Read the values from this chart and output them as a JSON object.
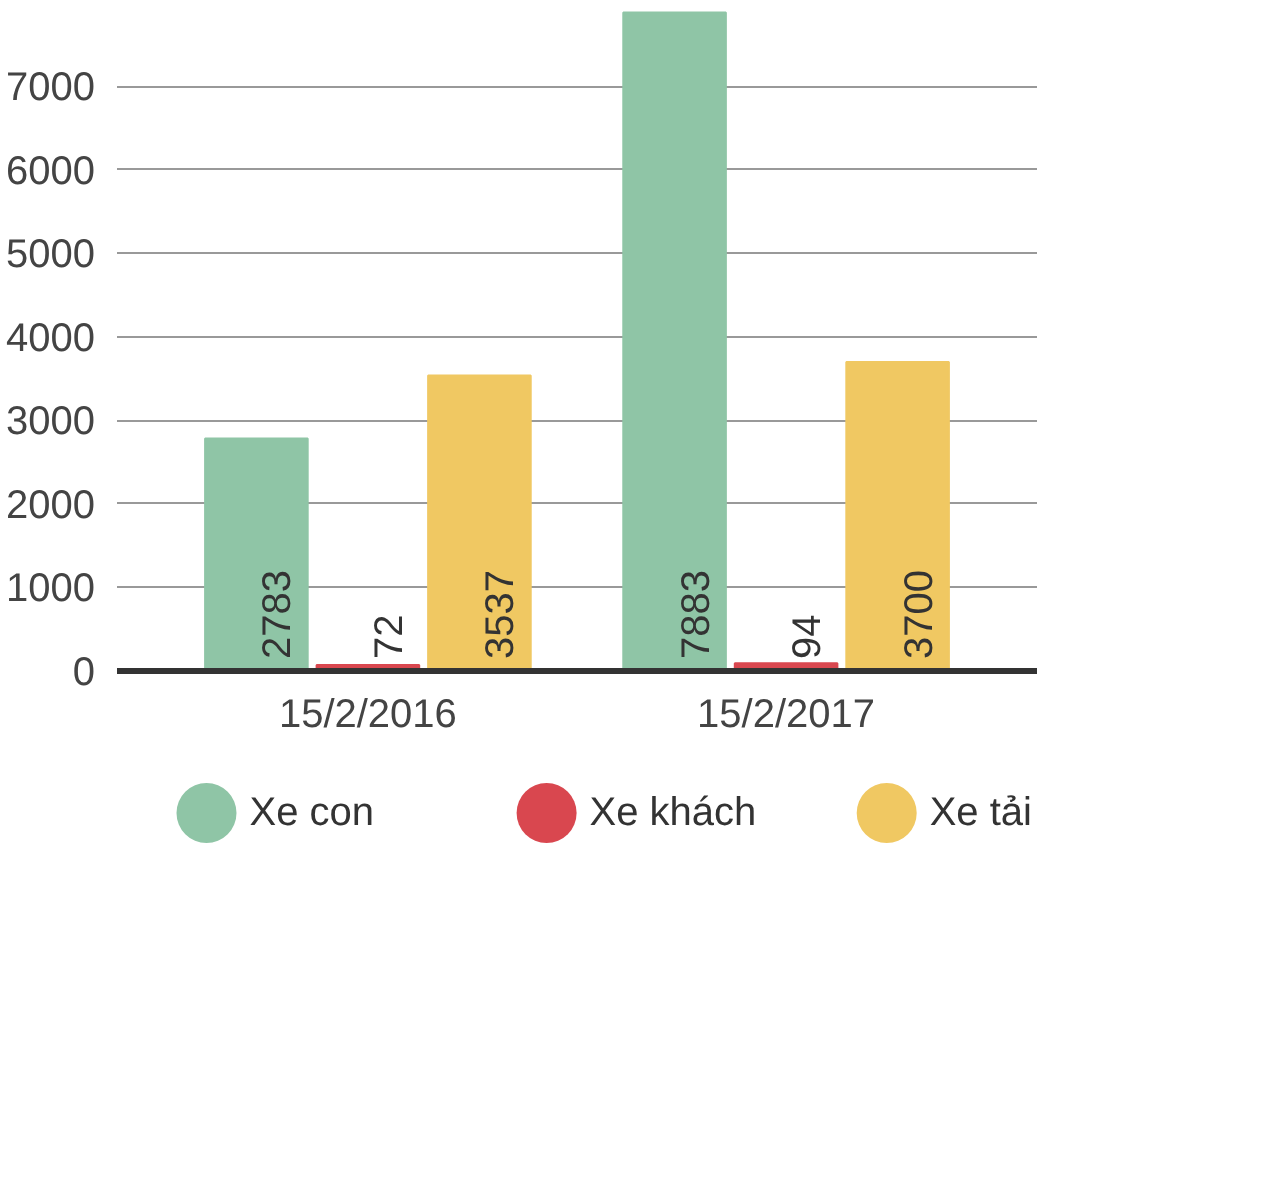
{
  "chart_data": {
    "type": "bar",
    "categories": [
      "15/2/2016",
      "15/2/2017"
    ],
    "series": [
      {
        "name": "Xe con",
        "color": "#8fc5a6",
        "values": [
          2783,
          7883
        ]
      },
      {
        "name": "Xe khách",
        "color": "#d9474f",
        "values": [
          72,
          94
        ]
      },
      {
        "name": "Xe tải",
        "color": "#f0c862",
        "values": [
          3537,
          3700
        ]
      }
    ],
    "ylim": [
      0,
      7900
    ],
    "yticks": [
      0,
      1000,
      2000,
      3000,
      4000,
      5000,
      6000,
      7000
    ],
    "grid": "y",
    "legend": "bottom",
    "data_labels": true
  }
}
